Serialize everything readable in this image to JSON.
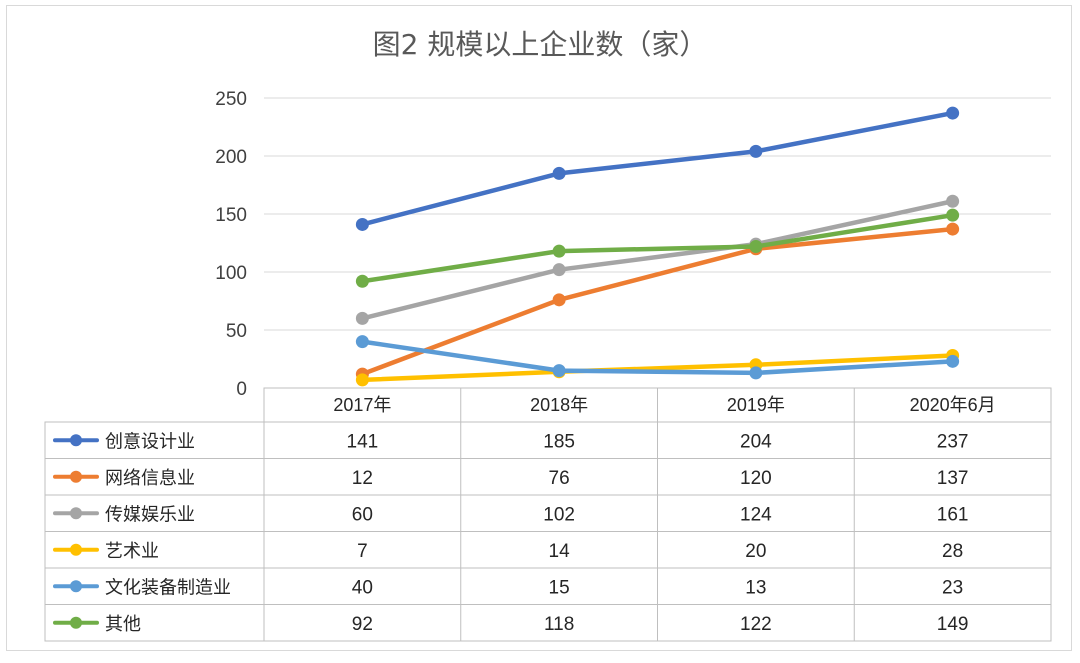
{
  "chart_data": {
    "type": "line",
    "title": "图2 规模以上企业数（家）",
    "categories": [
      "2017年",
      "2018年",
      "2019年",
      "2020年6月"
    ],
    "ylim": [
      0,
      250
    ],
    "yticks": [
      0,
      50,
      100,
      150,
      200,
      250
    ],
    "grid": true,
    "legend": "data-table",
    "series": [
      {
        "name": "创意设计业",
        "color": "#4472c4",
        "values": [
          141,
          185,
          204,
          237
        ]
      },
      {
        "name": "网络信息业",
        "color": "#ed7d31",
        "values": [
          12,
          76,
          120,
          137
        ]
      },
      {
        "name": "传媒娱乐业",
        "color": "#a5a5a5",
        "values": [
          60,
          102,
          124,
          161
        ]
      },
      {
        "name": "艺术业",
        "color": "#ffc000",
        "values": [
          7,
          14,
          20,
          28
        ]
      },
      {
        "name": "文化装备制造业",
        "color": "#5b9bd5",
        "values": [
          40,
          15,
          13,
          23
        ]
      },
      {
        "name": "其他",
        "color": "#70ad47",
        "values": [
          92,
          118,
          122,
          149
        ]
      }
    ]
  }
}
